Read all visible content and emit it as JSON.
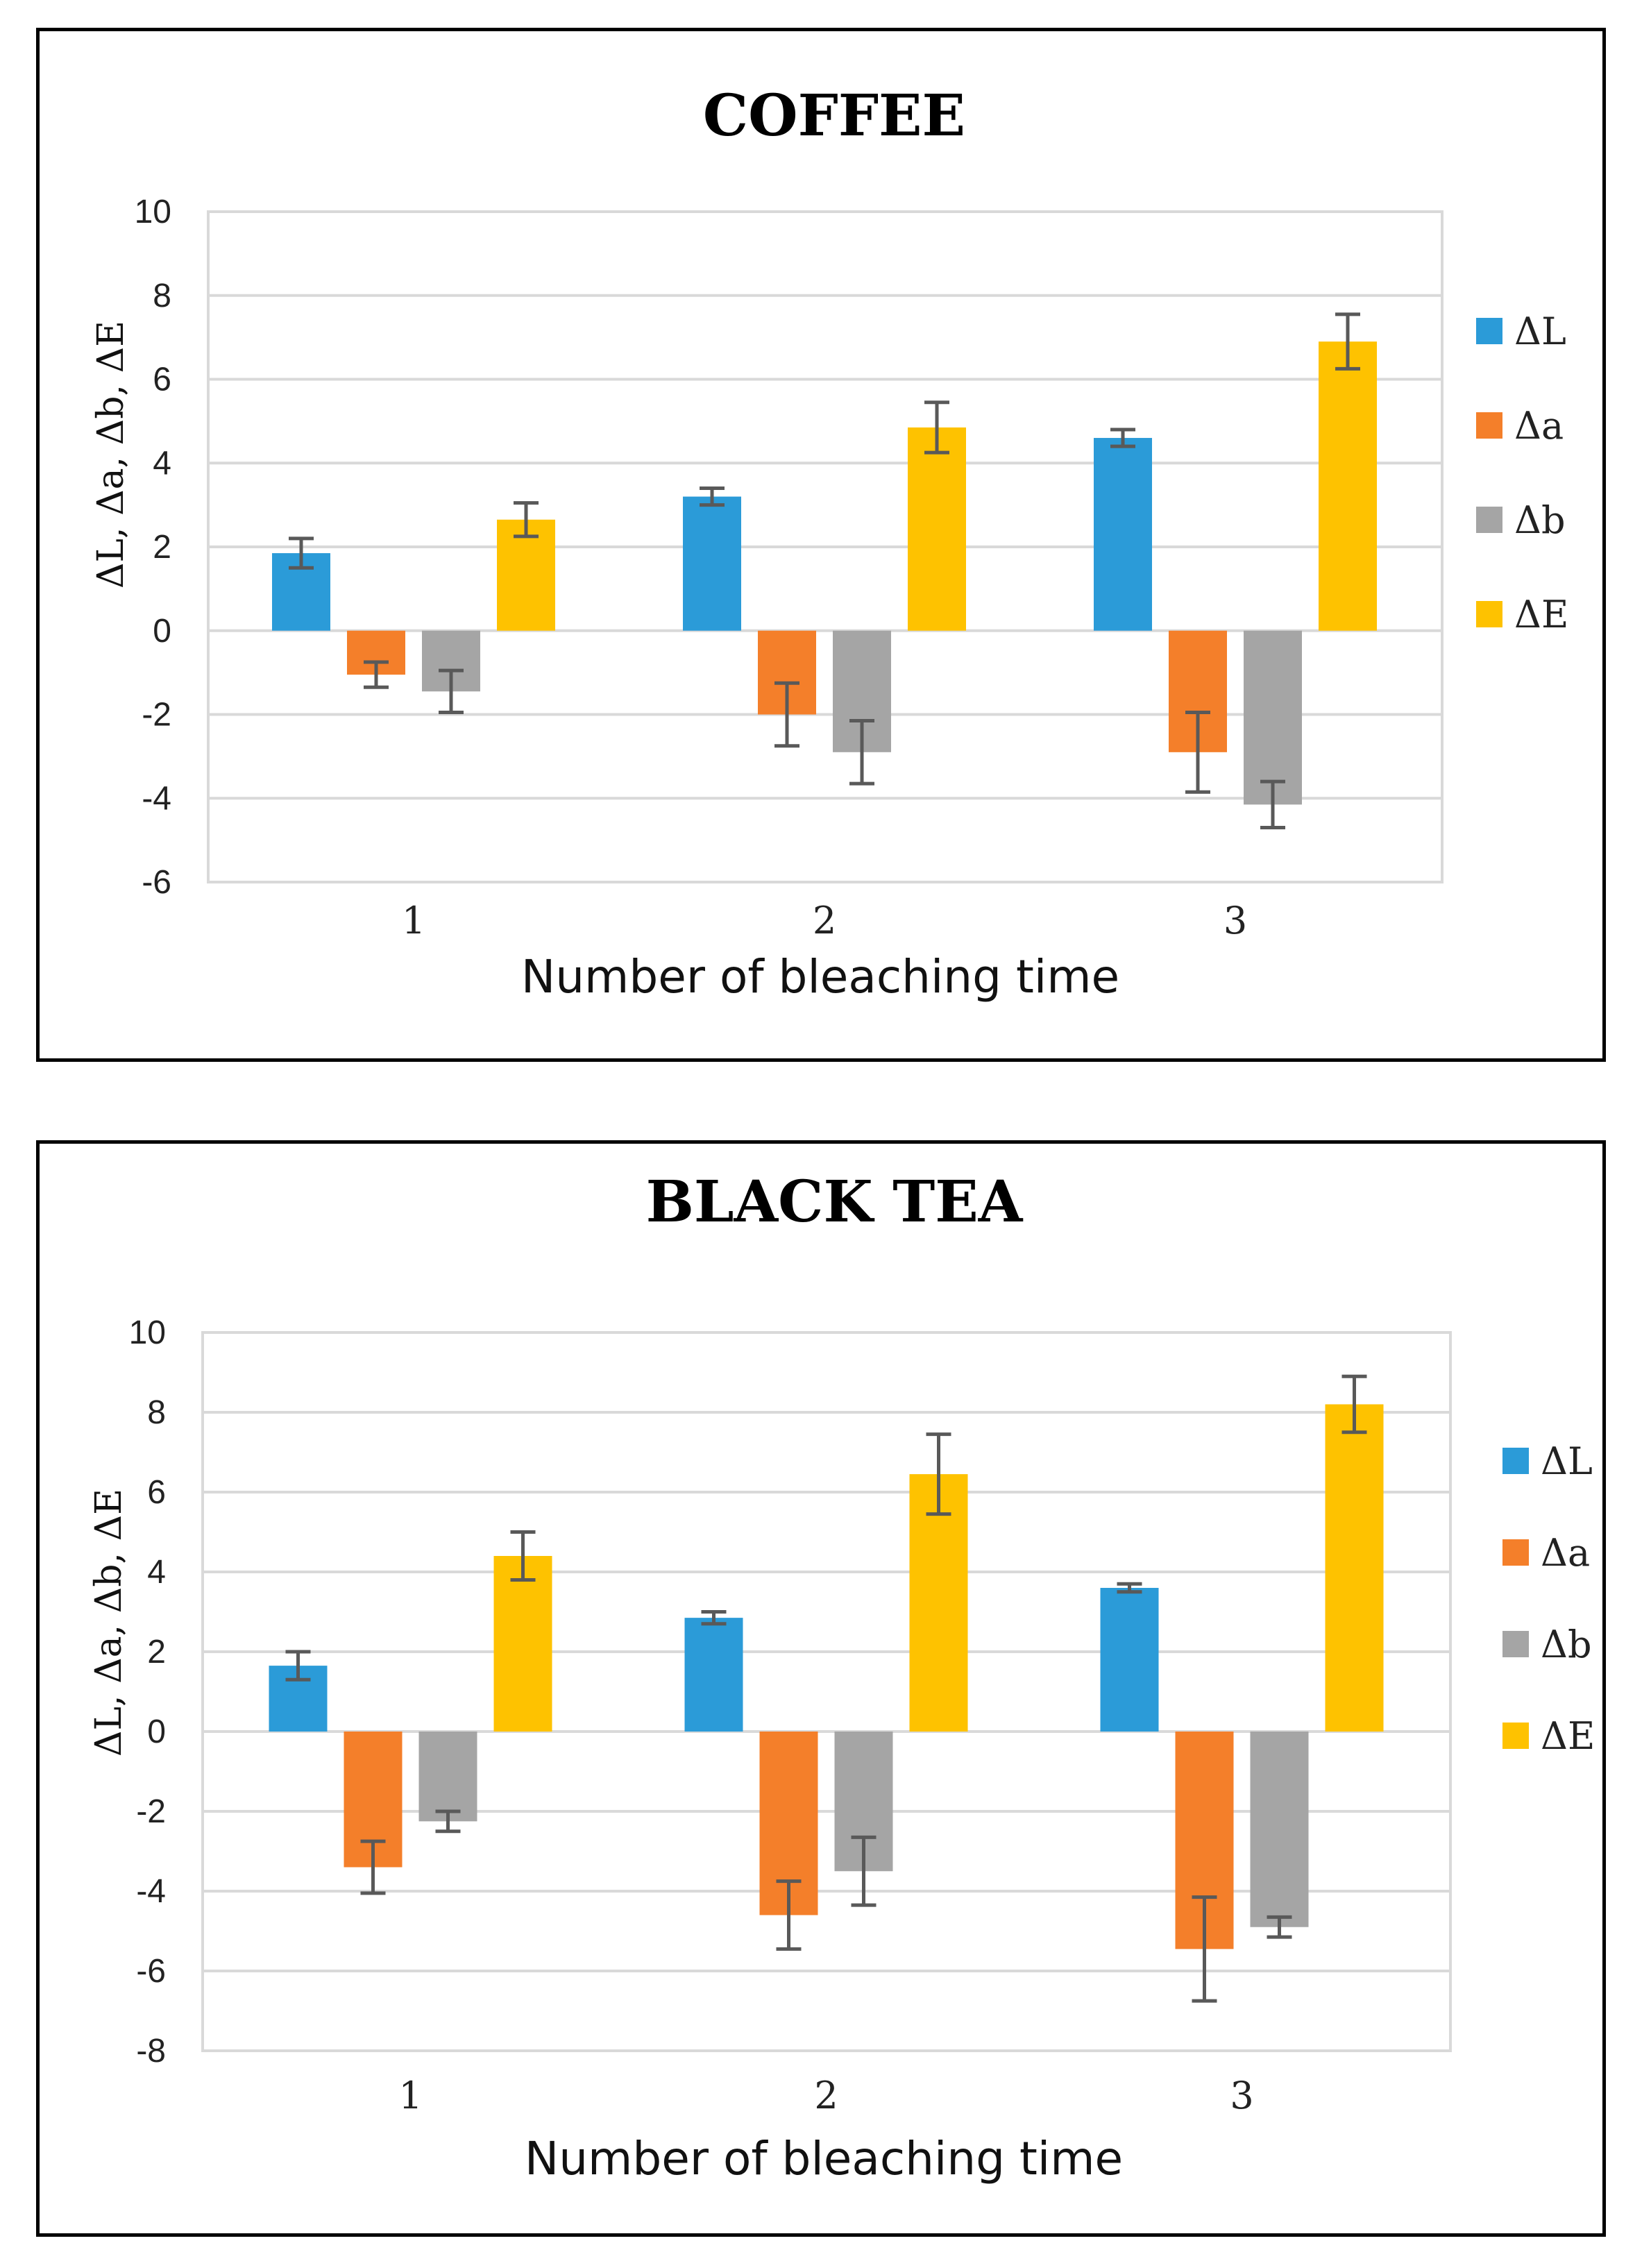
{
  "chart_data": [
    {
      "type": "bar",
      "title": "COFFEE",
      "xlabel": "Number of bleaching time",
      "ylabel": "ΔL, Δa, Δb, ΔE",
      "categories": [
        "1",
        "2",
        "3"
      ],
      "ylim": [
        -6,
        10
      ],
      "yticks": [
        10,
        8,
        6,
        4,
        2,
        0,
        -2,
        -4,
        -6
      ],
      "grid": true,
      "legend_position": "right",
      "series": [
        {
          "name": "ΔL",
          "color": "#2b9bd8",
          "values": [
            1.85,
            3.2,
            4.6
          ],
          "errors": [
            0.35,
            0.2,
            0.2
          ]
        },
        {
          "name": "Δa",
          "color": "#f47f2a",
          "values": [
            -1.05,
            -2.0,
            -2.9
          ],
          "errors": [
            0.3,
            0.75,
            0.95
          ]
        },
        {
          "name": "Δb",
          "color": "#a5a5a5",
          "values": [
            -1.45,
            -2.9,
            -4.15
          ],
          "errors": [
            0.5,
            0.75,
            0.55
          ]
        },
        {
          "name": "ΔE",
          "color": "#fec200",
          "values": [
            2.65,
            4.85,
            6.9
          ],
          "errors": [
            0.4,
            0.6,
            0.65
          ]
        }
      ]
    },
    {
      "type": "bar",
      "title": "BLACK TEA",
      "xlabel": "Number of bleaching time",
      "ylabel": "ΔL, Δa, Δb, ΔE",
      "categories": [
        "1",
        "2",
        "3"
      ],
      "ylim": [
        -8,
        10
      ],
      "yticks": [
        10,
        8,
        6,
        4,
        2,
        0,
        -2,
        -4,
        -6,
        -8
      ],
      "grid": true,
      "legend_position": "right",
      "series": [
        {
          "name": "ΔL",
          "color": "#2b9bd8",
          "values": [
            1.65,
            2.85,
            3.6
          ],
          "errors": [
            0.35,
            0.15,
            0.1
          ]
        },
        {
          "name": "Δa",
          "color": "#f47f2a",
          "values": [
            -3.4,
            -4.6,
            -5.45
          ],
          "errors": [
            0.65,
            0.85,
            1.3
          ]
        },
        {
          "name": "Δb",
          "color": "#a5a5a5",
          "values": [
            -2.25,
            -3.5,
            -4.9
          ],
          "errors": [
            0.25,
            0.85,
            0.25
          ]
        },
        {
          "name": "ΔE",
          "color": "#fec200",
          "values": [
            4.4,
            6.45,
            8.2
          ],
          "errors": [
            0.6,
            1.0,
            0.7
          ]
        }
      ]
    }
  ]
}
